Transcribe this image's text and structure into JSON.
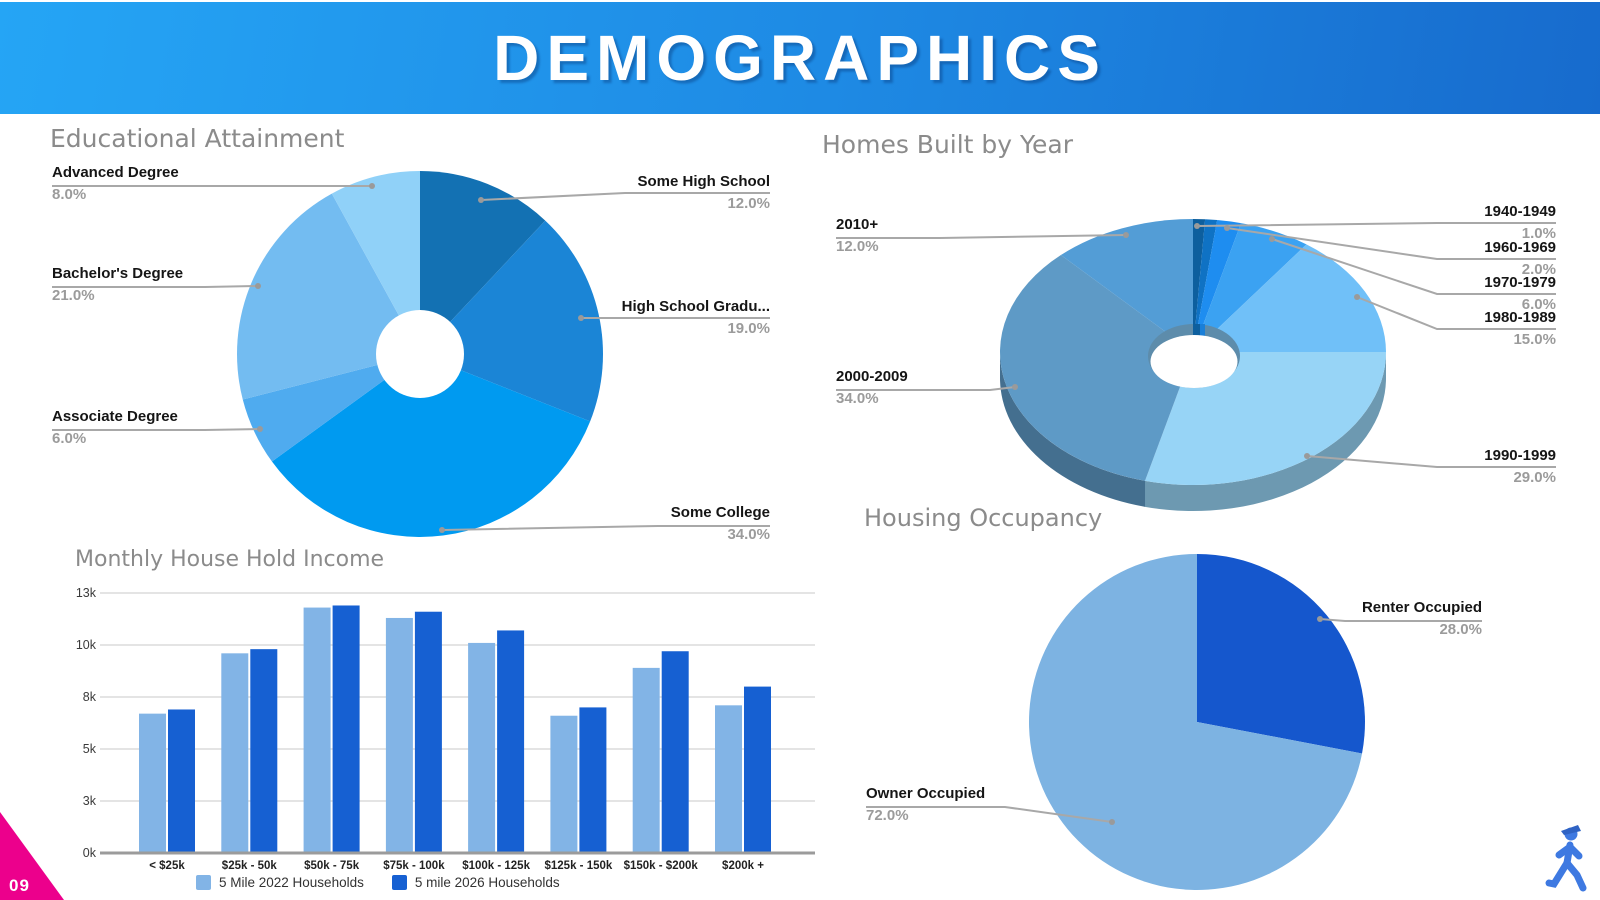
{
  "header": {
    "title": "DEMOGRAPHICS"
  },
  "page_number": "09",
  "colors": {
    "header_gradient_start": "#25a5f5",
    "header_gradient_end": "#176bcd",
    "accent_pink": "#ec008c",
    "leader_line": "#a8a8a8",
    "section_title_gray": "#8b8b8b",
    "value_gray": "#9b9b9b",
    "walker_blue": "#3e79e1"
  },
  "chart_data": [
    {
      "id": "education",
      "type": "pie",
      "variant": "donut",
      "title": "Educational Attainment",
      "legend_position": "callouts",
      "slices": [
        {
          "label": "Some High School",
          "value": 12,
          "value_text": "12.0%",
          "color": "#1371b3"
        },
        {
          "label": "High School Gradu...",
          "value": 19,
          "value_text": "19.0%",
          "color": "#1b85d6"
        },
        {
          "label": "Some College",
          "value": 34,
          "value_text": "34.0%",
          "color": "#009af0"
        },
        {
          "label": "Associate Degree",
          "value": 6,
          "value_text": "6.0%",
          "color": "#4fabef"
        },
        {
          "label": "Bachelor's Degree",
          "value": 21,
          "value_text": "21.0%",
          "color": "#73bcf1"
        },
        {
          "label": "Advanced Degree",
          "value": 8,
          "value_text": "8.0%",
          "color": "#90d1f8"
        }
      ]
    },
    {
      "id": "homes",
      "type": "pie",
      "variant": "donut-3d",
      "title": "Homes Built by Year",
      "legend_position": "callouts",
      "slices": [
        {
          "label": "1940-1949",
          "value": 1,
          "value_text": "1.0%",
          "color": "#0d5f9e"
        },
        {
          "label": "",
          "value": 1,
          "value_text": "",
          "color": "#0f72c4"
        },
        {
          "label": "1960-1969",
          "value": 2,
          "value_text": "2.0%",
          "color": "#1e8df0"
        },
        {
          "label": "1970-1979",
          "value": 6,
          "value_text": "6.0%",
          "color": "#3ba2f2"
        },
        {
          "label": "1980-1989",
          "value": 15,
          "value_text": "15.0%",
          "color": "#70c0f8"
        },
        {
          "label": "1990-1999",
          "value": 29,
          "value_text": "29.0%",
          "color": "#97d4f6"
        },
        {
          "label": "2000-2009",
          "value": 34,
          "value_text": "34.0%",
          "color": "#5e9ac6"
        },
        {
          "label": "2010+",
          "value": 12,
          "value_text": "12.0%",
          "color": "#539dd6"
        }
      ]
    },
    {
      "id": "income",
      "type": "bar",
      "title": "Monthly House Hold Income",
      "categories": [
        "< $25k",
        "$25k - 50k",
        "$50k - 75k",
        "$75k - 100k",
        "$100k - 125k",
        "$125k - 150k",
        "$150k - $200k",
        "$200k +"
      ],
      "series": [
        {
          "name": "5 Mile 2022 Households",
          "color": "#82b4e6",
          "values": [
            6.7,
            9.6,
            11.8,
            11.3,
            10.1,
            6.6,
            8.9,
            7.1
          ]
        },
        {
          "name": "5 mile 2026 Households",
          "color": "#1660d2",
          "values": [
            6.9,
            9.8,
            11.9,
            11.6,
            10.7,
            7.0,
            9.7,
            8.0
          ]
        }
      ],
      "unit": "thousands of households",
      "ylim": [
        0,
        12.5
      ],
      "grid": true,
      "legend_position": "bottom",
      "yticks": [
        {
          "v": 0,
          "label": "0k"
        },
        {
          "v": 2.5,
          "label": "3k"
        },
        {
          "v": 5,
          "label": "5k"
        },
        {
          "v": 7.5,
          "label": "8k"
        },
        {
          "v": 10,
          "label": "10k"
        },
        {
          "v": 12.5,
          "label": "13k"
        }
      ]
    },
    {
      "id": "housing",
      "type": "pie",
      "variant": "plain",
      "title": "Housing Occupancy",
      "legend_position": "callouts",
      "slices": [
        {
          "label": "Renter Occupied",
          "value": 28,
          "value_text": "28.0%",
          "color": "#1557cd"
        },
        {
          "label": "Owner Occupied",
          "value": 72,
          "value_text": "72.0%",
          "color": "#7db3e2"
        }
      ]
    }
  ]
}
